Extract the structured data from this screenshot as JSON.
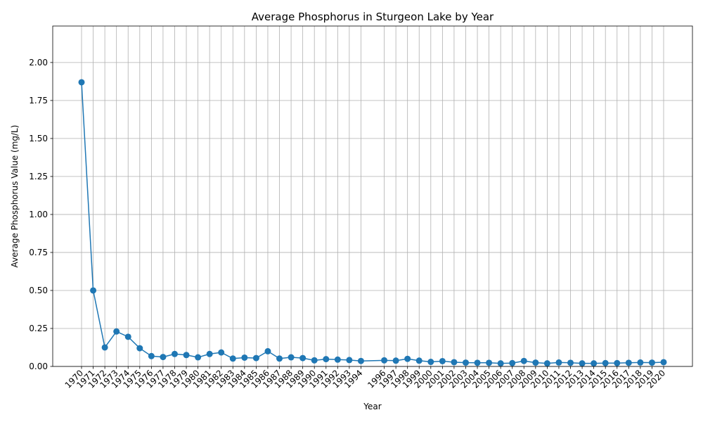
{
  "chart_data": {
    "type": "line",
    "title": "Average Phosphorus in Sturgeon Lake by Year",
    "xlabel": "Year",
    "ylabel": "Average Phosphorus Value (mg/L)",
    "ylim": [
      0,
      2.24
    ],
    "yticks": [
      0.0,
      0.25,
      0.5,
      0.75,
      1.0,
      1.25,
      1.5,
      1.75,
      2.0
    ],
    "ytick_labels": [
      "0.00",
      "0.25",
      "0.50",
      "0.75",
      "1.00",
      "1.25",
      "1.50",
      "1.75",
      "2.00"
    ],
    "grid": true,
    "color": "#1f77b4",
    "marker": "circle",
    "x": [
      1970,
      1971,
      1972,
      1973,
      1974,
      1975,
      1976,
      1977,
      1978,
      1979,
      1980,
      1981,
      1982,
      1983,
      1984,
      1985,
      1986,
      1987,
      1988,
      1989,
      1990,
      1991,
      1992,
      1993,
      1994,
      1996,
      1997,
      1998,
      1999,
      2000,
      2001,
      2002,
      2003,
      2004,
      2005,
      2006,
      2007,
      2008,
      2009,
      2010,
      2011,
      2012,
      2013,
      2014,
      2015,
      2016,
      2017,
      2018,
      2019,
      2020
    ],
    "y": [
      1.87,
      0.5,
      0.125,
      0.23,
      0.195,
      0.12,
      0.068,
      0.062,
      0.082,
      0.075,
      0.06,
      0.082,
      0.092,
      0.052,
      0.058,
      0.055,
      0.1,
      0.052,
      0.06,
      0.055,
      0.04,
      0.048,
      0.045,
      0.042,
      0.036,
      0.04,
      0.038,
      0.05,
      0.038,
      0.03,
      0.035,
      0.028,
      0.025,
      0.024,
      0.024,
      0.02,
      0.022,
      0.036,
      0.025,
      0.02,
      0.026,
      0.024,
      0.02,
      0.02,
      0.022,
      0.022,
      0.024,
      0.026,
      0.025,
      0.028
    ]
  }
}
